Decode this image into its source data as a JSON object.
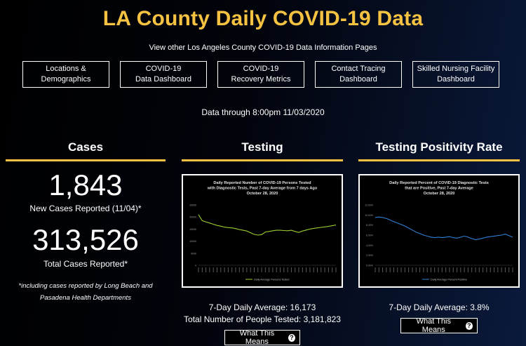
{
  "header": {
    "title": "LA County Daily COVID-19 Data",
    "subtitle": "View other Los Angeles County COVID-19 Data Information Pages"
  },
  "nav": [
    {
      "label": "Locations &\nDemographics"
    },
    {
      "label": "COVID-19\nData Dashboard"
    },
    {
      "label": "COVID-19\nRecovery Metrics"
    },
    {
      "label": "Contact Tracing\nDashboard"
    },
    {
      "label": "Skilled Nursing Facility\nDashboard"
    }
  ],
  "data_through": "Data through 8:00pm 11/03/2020",
  "cases": {
    "heading": "Cases",
    "new_cases": "1,843",
    "new_cases_label": "New Cases Reported (11/04)*",
    "total_cases": "313,526",
    "total_cases_label": "Total Cases Reported*",
    "note_line1": "*including cases reported by Long Beach and",
    "note_line2": "Pasadena Health Departments"
  },
  "testing": {
    "heading": "Testing",
    "daily_average": "7-Day Daily Average: 16,173",
    "total_tested": "Total Number of People Tested: 3,181,823",
    "button_label": "What This Means"
  },
  "positivity": {
    "heading": "Testing Positivity Rate",
    "daily_average": "7-Day Daily Average: 3.8%",
    "button_label": "What This Means"
  },
  "colors": {
    "accent": "#f5c242",
    "testing_line": "#9acd32",
    "positivity_line": "#2f7fd6"
  },
  "chart_data": [
    {
      "type": "line",
      "title": "Daily Reported Number of COVID-19 Persons Tested with Diagnostic Tests, Past 7-day Average from 7 days Ago October 28, 2020",
      "title_lines": [
        "Daily Reported Number of COVID-19 Persons Tested",
        "with Diagnostic Tests, Past 7-day Average from 7 days Ago",
        "October 28, 2020"
      ],
      "legend": "Daily Average Persons Tested",
      "ylim": [
        0,
        25000
      ],
      "yticks": [
        "25000",
        "20000",
        "15000",
        "10000",
        "5000",
        "0"
      ],
      "series": [
        {
          "name": "Daily Average Persons Tested",
          "values": [
            21000,
            18500,
            18000,
            17500,
            17000,
            16500,
            16200,
            15800,
            15600,
            15500,
            15200,
            14800,
            14500,
            14200,
            13500,
            12800,
            12500,
            12700,
            13800,
            14000,
            14300,
            14500,
            14500,
            14400,
            14300,
            14500,
            14000,
            13600,
            14200,
            14600,
            15000,
            15300,
            15500,
            15700,
            15900,
            16100,
            16400,
            16700
          ]
        }
      ]
    },
    {
      "type": "line",
      "title": "Daily Reported Percent of COVID-19 Diagnostic Tests that are Positive, Past 7-day Average October 28, 2020",
      "title_lines": [
        "Daily Reported Percent of COVID-19 Diagnostic Tests",
        "that are Positive, Past 7-day Average",
        "October 28, 2020"
      ],
      "legend": "Daily Average Percent Positive",
      "ylim": [
        0,
        0.12
      ],
      "yticks": [
        "12.00%",
        "10.00%",
        "8.00%",
        "6.00%",
        "4.00%",
        "2.00%",
        "0.00%"
      ],
      "series": [
        {
          "name": "Daily Average Percent Positive",
          "values": [
            9.5,
            9.6,
            9.5,
            9.3,
            9.0,
            8.7,
            8.4,
            8.1,
            7.8,
            7.4,
            7.0,
            6.6,
            6.3,
            6.0,
            5.8,
            5.6,
            5.5,
            5.6,
            5.5,
            5.6,
            5.7,
            5.5,
            5.4,
            5.6,
            5.8,
            5.6,
            5.3,
            5.1,
            5.2,
            5.4,
            5.6,
            5.7,
            5.8,
            5.9,
            6.0,
            6.2,
            5.9,
            5.6
          ]
        }
      ]
    }
  ]
}
